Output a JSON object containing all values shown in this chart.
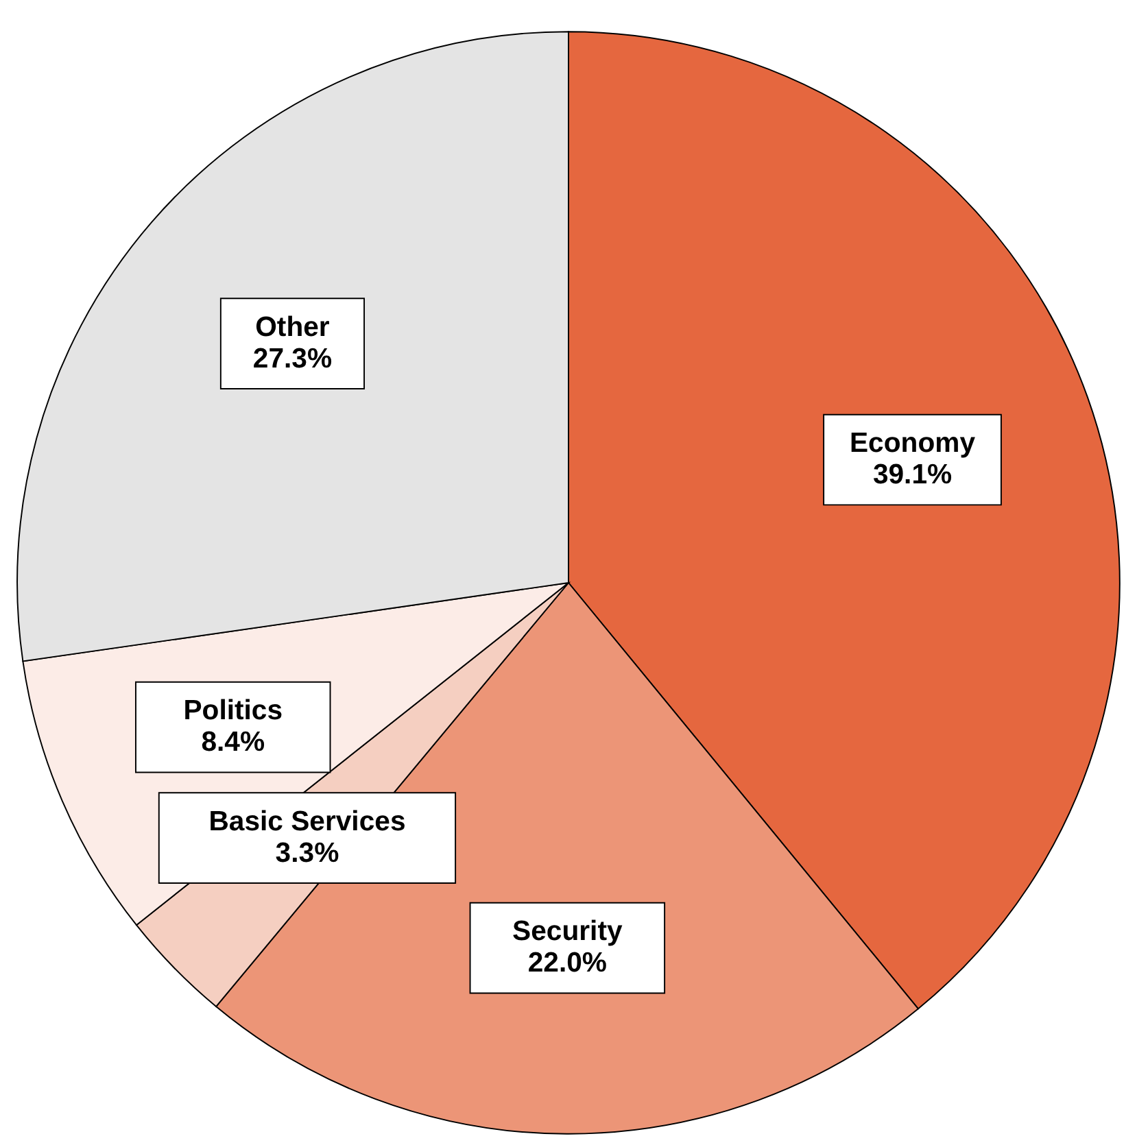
{
  "chart_data": {
    "type": "pie",
    "categories": [
      "Economy",
      "Security",
      "Basic Services",
      "Politics",
      "Other"
    ],
    "values": [
      39.1,
      22.0,
      3.3,
      8.4,
      27.3
    ],
    "value_labels": [
      "39.1%",
      "22.0%",
      "3.3%",
      "8.4%",
      "27.3%"
    ],
    "colors": [
      "#e5673f",
      "#ec9577",
      "#f5cfc1",
      "#fcece7",
      "#e4e4e4"
    ]
  }
}
